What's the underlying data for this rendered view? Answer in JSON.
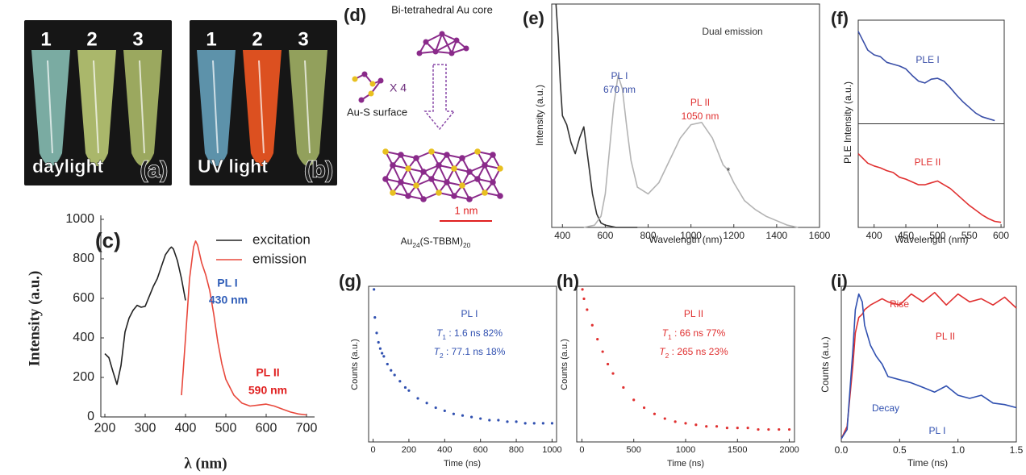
{
  "photos": [
    {
      "label": "(a)",
      "caption": "daylight",
      "tubes": [
        "1",
        "2",
        "3"
      ]
    },
    {
      "label": "(b)",
      "caption": "UV light",
      "tubes": [
        "1",
        "2",
        "3"
      ]
    }
  ],
  "diagram": {
    "label": "(d)",
    "core": "Bi-tetrahedral Au core",
    "multiplier": "X 4",
    "surface": "Au-S surface",
    "scale": "1 nm",
    "formula": [
      "Au",
      "24",
      "(S-TBBM)",
      "20"
    ]
  },
  "chart_data": [
    {
      "type": "line",
      "label": "(c)",
      "xlabel": "λ (nm)",
      "ylabel": "Intensity (a.u.)",
      "xlim": [
        190,
        720
      ],
      "xticks": [
        200,
        300,
        400,
        500,
        600,
        700
      ],
      "ylim": [
        0,
        1000
      ],
      "yticks": [
        0,
        200,
        400,
        600,
        800,
        1000
      ],
      "legend": "upper right",
      "series": [
        {
          "name": "excitation",
          "color": "#222222",
          "x": [
            200,
            210,
            220,
            230,
            240,
            250,
            260,
            270,
            280,
            290,
            300,
            310,
            320,
            330,
            340,
            350,
            360,
            365,
            370,
            380,
            390,
            400
          ],
          "values": [
            320,
            300,
            230,
            165,
            260,
            430,
            500,
            540,
            565,
            555,
            560,
            610,
            660,
            700,
            760,
            820,
            850,
            860,
            850,
            790,
            700,
            590
          ]
        },
        {
          "name": "emission",
          "color": "#e8483c",
          "x": [
            390,
            400,
            410,
            420,
            425,
            430,
            440,
            450,
            460,
            470,
            480,
            490,
            500,
            520,
            540,
            560,
            580,
            600,
            620,
            640,
            660,
            680,
            700
          ],
          "values": [
            110,
            400,
            700,
            860,
            890,
            870,
            780,
            720,
            640,
            520,
            380,
            270,
            190,
            110,
            70,
            55,
            60,
            65,
            55,
            40,
            25,
            15,
            10
          ]
        }
      ],
      "annotations": [
        {
          "text": "PL I",
          "color": "#2f5db8"
        },
        {
          "text": "430 nm",
          "color": "#2f5db8"
        },
        {
          "text": "PL II",
          "color": "#e02020"
        },
        {
          "text": "590 nm",
          "color": "#e02020"
        }
      ]
    },
    {
      "type": "line",
      "label": "(e)",
      "xlabel": "Wavelength (nm)",
      "ylabel": "Intensity (a.u.)",
      "xlim": [
        350,
        1600
      ],
      "xticks": [
        400,
        600,
        800,
        1000,
        1200,
        1400,
        1600
      ],
      "ylim": [
        0,
        1
      ],
      "series": [
        {
          "color": "#333333",
          "x": [
            370,
            380,
            390,
            400,
            420,
            440,
            460,
            480,
            500,
            520,
            540,
            560,
            580,
            600,
            650,
            700,
            750
          ],
          "values": [
            1.0,
            0.85,
            0.65,
            0.5,
            0.46,
            0.38,
            0.33,
            0.4,
            0.45,
            0.3,
            0.15,
            0.06,
            0.02,
            0.01,
            0.0,
            0.0,
            0.0
          ]
        },
        {
          "color": "#b4b4b4",
          "x": [
            500,
            550,
            580,
            600,
            620,
            640,
            660,
            680,
            700,
            720,
            750,
            800,
            850,
            900,
            950,
            1000,
            1050,
            1100,
            1150,
            1170,
            1200,
            1250,
            1300,
            1350,
            1400,
            1450,
            1500
          ],
          "values": [
            0,
            0.01,
            0.05,
            0.15,
            0.35,
            0.55,
            0.68,
            0.62,
            0.45,
            0.3,
            0.18,
            0.15,
            0.2,
            0.3,
            0.4,
            0.46,
            0.47,
            0.4,
            0.28,
            0.26,
            0.2,
            0.12,
            0.08,
            0.05,
            0.03,
            0.01,
            0
          ]
        }
      ],
      "annotations": [
        {
          "text": "Dual emission",
          "color": "#333333"
        },
        {
          "text": "PL I",
          "color": "#3a4fa8"
        },
        {
          "text": "670 nm",
          "color": "#3a4fa8"
        },
        {
          "text": "PL II",
          "color": "#e03030"
        },
        {
          "text": "1050 nm",
          "color": "#e03030"
        },
        {
          "text": "*",
          "color": "#333333"
        }
      ]
    },
    {
      "type": "line",
      "label": "(f)",
      "stacked": true,
      "xlabel": "Wavelength (nm)",
      "ylabel": "PLE Intensity (a.u.)",
      "xlim": [
        375,
        605
      ],
      "xticks": [
        400,
        450,
        500,
        550,
        600
      ],
      "x": [
        375,
        390,
        400,
        410,
        420,
        430,
        440,
        450,
        460,
        470,
        480,
        490,
        500,
        510,
        520,
        530,
        540,
        550,
        560,
        570,
        580,
        590,
        600
      ],
      "series": [
        {
          "name": "PLE I",
          "color": "#3a4fa8",
          "ylim": [
            0,
            1
          ],
          "values": [
            0.95,
            0.75,
            0.7,
            0.68,
            0.62,
            0.6,
            0.58,
            0.55,
            0.48,
            0.42,
            0.4,
            0.44,
            0.45,
            0.42,
            0.35,
            0.27,
            0.2,
            0.14,
            0.08,
            0.04,
            0.02,
            0.0,
            null
          ]
        },
        {
          "name": "PLE II",
          "color": "#e03030",
          "ylim": [
            0,
            1
          ],
          "values": [
            0.75,
            0.65,
            0.62,
            0.6,
            0.57,
            0.55,
            0.5,
            0.48,
            0.45,
            0.42,
            0.42,
            0.44,
            0.46,
            0.42,
            0.38,
            0.32,
            0.26,
            0.2,
            0.15,
            0.1,
            0.06,
            0.03,
            0.02
          ]
        }
      ]
    },
    {
      "type": "scatter",
      "label": "(g)",
      "color": "#3050b0",
      "xlabel": "Time (ns)",
      "ylabel": "Counts (a.u.)",
      "xlim": [
        -25,
        1025
      ],
      "xticks": [
        0,
        200,
        400,
        600,
        800,
        1000
      ],
      "ylim": [
        0,
        1
      ],
      "x": [
        5,
        10,
        20,
        30,
        40,
        50,
        60,
        80,
        100,
        120,
        150,
        180,
        200,
        250,
        300,
        350,
        400,
        450,
        500,
        550,
        600,
        650,
        700,
        750,
        800,
        850,
        900,
        950,
        1000
      ],
      "values": [
        0.98,
        0.8,
        0.7,
        0.64,
        0.6,
        0.57,
        0.55,
        0.5,
        0.46,
        0.43,
        0.39,
        0.35,
        0.33,
        0.28,
        0.25,
        0.22,
        0.2,
        0.18,
        0.17,
        0.16,
        0.15,
        0.14,
        0.14,
        0.13,
        0.13,
        0.12,
        0.12,
        0.12,
        0.12
      ],
      "annotations": [
        {
          "text": "PL I",
          "color": "#3050b0"
        },
        {
          "parts": [
            "T",
            "1",
            " : 1.6 ns 82%"
          ],
          "color": "#3050b0"
        },
        {
          "parts": [
            "T",
            "2",
            " : 77.1 ns 18%"
          ],
          "color": "#3050b0"
        }
      ]
    },
    {
      "type": "scatter",
      "label": "(h)",
      "color": "#e03030",
      "xlabel": "Time (ns)",
      "ylabel": "Counts (a.u.)",
      "xlim": [
        -50,
        2050
      ],
      "xticks": [
        0,
        500,
        1000,
        1500,
        2000
      ],
      "ylim": [
        0,
        1
      ],
      "x": [
        5,
        20,
        50,
        100,
        150,
        200,
        250,
        300,
        400,
        500,
        600,
        700,
        800,
        900,
        1000,
        1100,
        1200,
        1300,
        1400,
        1500,
        1600,
        1700,
        1800,
        1900,
        2000
      ],
      "values": [
        0.98,
        0.92,
        0.85,
        0.75,
        0.66,
        0.58,
        0.5,
        0.44,
        0.35,
        0.27,
        0.22,
        0.18,
        0.15,
        0.13,
        0.12,
        0.11,
        0.1,
        0.1,
        0.09,
        0.09,
        0.09,
        0.08,
        0.08,
        0.08,
        0.08
      ],
      "annotations": [
        {
          "text": "PL II",
          "color": "#e03030"
        },
        {
          "parts": [
            "T",
            "1",
            " : 66 ns 77%"
          ],
          "color": "#e03030"
        },
        {
          "parts": [
            "T",
            "2",
            " : 265 ns 23%"
          ],
          "color": "#e03030"
        }
      ]
    },
    {
      "type": "line",
      "label": "(i)",
      "xlabel": "Time (ns)",
      "ylabel": "Counts (a.u.)",
      "xlim": [
        0,
        1.5
      ],
      "xticks": [
        {
          "value": 0,
          "label": "0.0"
        },
        {
          "value": 0.5,
          "label": "0.5"
        },
        {
          "value": 1,
          "label": "1.0"
        },
        {
          "value": 1.5,
          "label": "1.5"
        }
      ],
      "ylim": [
        0,
        1
      ],
      "x": [
        0,
        0.05,
        0.1,
        0.12,
        0.15,
        0.18,
        0.2,
        0.25,
        0.3,
        0.35,
        0.4,
        0.5,
        0.6,
        0.7,
        0.8,
        0.9,
        1.0,
        1.1,
        1.2,
        1.3,
        1.4,
        1.5
      ],
      "series": [
        {
          "name": "Rise",
          "color": "#e03030",
          "values": [
            0.02,
            0.1,
            0.5,
            0.7,
            0.8,
            0.82,
            0.85,
            0.88,
            0.9,
            0.92,
            0.9,
            0.88,
            0.95,
            0.9,
            0.96,
            0.88,
            0.95,
            0.9,
            0.92,
            0.88,
            0.93,
            0.86
          ]
        },
        {
          "name": "Decay",
          "color": "#3050b0",
          "values": [
            0.02,
            0.08,
            0.6,
            0.85,
            0.95,
            0.9,
            0.75,
            0.62,
            0.55,
            0.5,
            0.42,
            0.4,
            0.38,
            0.35,
            0.32,
            0.36,
            0.3,
            0.28,
            0.3,
            0.25,
            0.24,
            0.22
          ]
        }
      ],
      "annotations": [
        {
          "text": "PL II",
          "color": "#e03030"
        },
        {
          "text": "PL I",
          "color": "#3050b0"
        }
      ]
    }
  ]
}
